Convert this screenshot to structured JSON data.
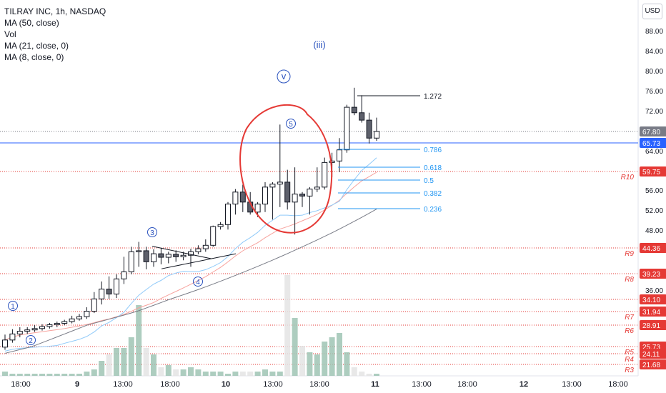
{
  "legend": {
    "title": "TILRAY INC, 1h, NASDAQ",
    "ma50": "MA (50, close)",
    "vol": "Vol",
    "ma21": "MA (21, close, 0)",
    "ma8": "MA (8, close, 0)"
  },
  "currency": "USD",
  "chart_data": {
    "type": "candlestick",
    "symbol": "TILRAY INC",
    "interval": "1h",
    "exchange": "NASDAQ",
    "price_ticks": [
      88,
      84,
      80,
      76,
      72,
      64,
      56,
      52,
      48,
      36
    ],
    "time_labels": [
      "18:00",
      "9",
      "13:00",
      "18:00",
      "10",
      "13:00",
      "18:00",
      "11",
      "13:00",
      "18:00",
      "12",
      "13:00",
      "18:00"
    ],
    "candles": [
      {
        "o": 25.6,
        "h": 27.5,
        "l": 25.0,
        "c": 26.7
      },
      {
        "o": 26.7,
        "h": 28.3,
        "l": 26.3,
        "c": 27.6
      },
      {
        "o": 27.6,
        "h": 28.6,
        "l": 27.1,
        "c": 28.0
      },
      {
        "o": 28.0,
        "h": 28.6,
        "l": 27.6,
        "c": 28.2
      },
      {
        "o": 28.2,
        "h": 28.9,
        "l": 27.9,
        "c": 28.4
      },
      {
        "o": 28.4,
        "h": 29.1,
        "l": 28.1,
        "c": 28.7
      },
      {
        "o": 28.7,
        "h": 29.4,
        "l": 28.4,
        "c": 29.0
      },
      {
        "o": 29.0,
        "h": 29.7,
        "l": 28.6,
        "c": 29.3
      },
      {
        "o": 29.3,
        "h": 30.1,
        "l": 28.9,
        "c": 29.7
      },
      {
        "o": 29.7,
        "h": 31.0,
        "l": 29.3,
        "c": 30.3
      },
      {
        "o": 30.3,
        "h": 31.4,
        "l": 29.9,
        "c": 30.8
      },
      {
        "o": 30.8,
        "h": 32.7,
        "l": 30.3,
        "c": 32.0
      },
      {
        "o": 32.0,
        "h": 35.6,
        "l": 31.6,
        "c": 34.2
      },
      {
        "o": 34.2,
        "h": 37.7,
        "l": 33.2,
        "c": 36.2
      },
      {
        "o": 36.2,
        "h": 38.7,
        "l": 34.2,
        "c": 35.2
      },
      {
        "o": 35.2,
        "h": 39.1,
        "l": 34.4,
        "c": 38.2
      },
      {
        "o": 38.2,
        "h": 42.6,
        "l": 37.2,
        "c": 39.6
      },
      {
        "o": 39.6,
        "h": 44.6,
        "l": 39.1,
        "c": 43.6
      },
      {
        "o": 43.6,
        "h": 45.6,
        "l": 40.6,
        "c": 43.8
      },
      {
        "o": 43.8,
        "h": 44.6,
        "l": 40.1,
        "c": 41.6
      },
      {
        "o": 41.6,
        "h": 44.1,
        "l": 40.6,
        "c": 43.2
      },
      {
        "o": 43.2,
        "h": 44.4,
        "l": 41.1,
        "c": 42.5
      },
      {
        "o": 42.5,
        "h": 43.6,
        "l": 41.3,
        "c": 43.1
      },
      {
        "o": 43.1,
        "h": 43.9,
        "l": 41.6,
        "c": 42.6
      },
      {
        "o": 42.6,
        "h": 43.6,
        "l": 41.9,
        "c": 42.9
      },
      {
        "o": 42.9,
        "h": 44.2,
        "l": 40.6,
        "c": 43.6
      },
      {
        "o": 43.6,
        "h": 44.9,
        "l": 43.1,
        "c": 44.2
      },
      {
        "o": 44.2,
        "h": 46.1,
        "l": 43.6,
        "c": 44.9
      },
      {
        "o": 44.9,
        "h": 48.9,
        "l": 44.6,
        "c": 48.7
      },
      {
        "o": 48.7,
        "h": 49.6,
        "l": 48.1,
        "c": 49.1
      },
      {
        "o": 49.1,
        "h": 53.6,
        "l": 48.1,
        "c": 53.2
      },
      {
        "o": 53.2,
        "h": 56.2,
        "l": 51.1,
        "c": 55.6
      },
      {
        "o": 55.6,
        "h": 57.1,
        "l": 51.6,
        "c": 53.6
      },
      {
        "o": 53.6,
        "h": 55.6,
        "l": 51.1,
        "c": 51.6
      },
      {
        "o": 51.6,
        "h": 53.6,
        "l": 50.6,
        "c": 53.2
      },
      {
        "o": 53.2,
        "h": 57.6,
        "l": 51.6,
        "c": 56.6
      },
      {
        "o": 56.6,
        "h": 57.6,
        "l": 50.1,
        "c": 57.2
      },
      {
        "o": 57.2,
        "h": 69.2,
        "l": 52.6,
        "c": 57.6
      },
      {
        "o": 57.6,
        "h": 60.1,
        "l": 52.1,
        "c": 53.6
      },
      {
        "o": 53.6,
        "h": 60.6,
        "l": 47.1,
        "c": 55.2
      },
      {
        "o": 55.2,
        "h": 55.6,
        "l": 52.6,
        "c": 54.8
      },
      {
        "o": 54.8,
        "h": 56.6,
        "l": 51.1,
        "c": 56.2
      },
      {
        "o": 56.2,
        "h": 60.6,
        "l": 55.6,
        "c": 56.6
      },
      {
        "o": 56.6,
        "h": 62.6,
        "l": 56.1,
        "c": 61.6
      },
      {
        "o": 61.6,
        "h": 63.6,
        "l": 58.6,
        "c": 61.9
      },
      {
        "o": 61.9,
        "h": 66.6,
        "l": 59.6,
        "c": 64.2
      },
      {
        "o": 64.2,
        "h": 73.2,
        "l": 63.6,
        "c": 72.7
      },
      {
        "o": 72.7,
        "h": 76.6,
        "l": 71.1,
        "c": 71.6
      },
      {
        "o": 71.6,
        "h": 75.1,
        "l": 69.6,
        "c": 70.1
      },
      {
        "o": 70.1,
        "h": 71.6,
        "l": 65.6,
        "c": 66.6
      },
      {
        "o": 66.6,
        "h": 70.6,
        "l": 66.1,
        "c": 67.8
      }
    ],
    "volume": [
      2,
      1,
      1,
      1,
      1,
      1,
      1,
      1,
      1,
      1,
      1,
      2,
      3,
      7,
      10,
      13,
      13,
      18,
      33,
      13,
      10,
      4,
      5,
      3,
      3,
      4,
      3,
      2,
      2,
      2,
      1,
      2,
      2,
      2,
      2,
      3,
      2,
      2,
      47,
      27,
      14,
      11,
      10,
      16,
      18,
      20,
      11,
      4,
      2,
      1,
      1
    ],
    "price_labels": [
      {
        "value": "67.80",
        "kind": "last"
      },
      {
        "value": "65.73",
        "kind": "line"
      },
      {
        "value": "59.75",
        "kind": "level",
        "label": "R10"
      },
      {
        "value": "44.36",
        "kind": "level",
        "label": "R9"
      },
      {
        "value": "39.23",
        "kind": "level",
        "label": "R8"
      },
      {
        "value": "34.10",
        "kind": "level",
        "label": ""
      },
      {
        "value": "31.94",
        "kind": "level",
        "label": "R7"
      },
      {
        "value": "28.91",
        "kind": "level",
        "label": "R6"
      },
      {
        "value": "25.73",
        "kind": "level",
        "label": "R5"
      },
      {
        "value": "24.11",
        "kind": "level",
        "label": "R4"
      },
      {
        "value": "21.68",
        "kind": "level",
        "label": "R3"
      }
    ],
    "fib_levels": [
      "1.272",
      "0.786",
      "0.618",
      "0.5",
      "0.382",
      "0.236"
    ],
    "wave_labels": [
      "(iii)",
      "v",
      "5",
      "3",
      "4",
      "1",
      "2"
    ],
    "colors": {
      "bull": "#ffffff",
      "bear": "#5d606b",
      "level": "#e53935",
      "blue_line": "#2962ff",
      "ma50": "#787b86",
      "ma21": "#f7a29d",
      "ma8": "#90caf9",
      "fib": "#2196f3",
      "circle": "#e53935",
      "wave": "#2a52be",
      "vol_up": "#9fc4b4",
      "vol_down": "#e4e4e4"
    }
  }
}
